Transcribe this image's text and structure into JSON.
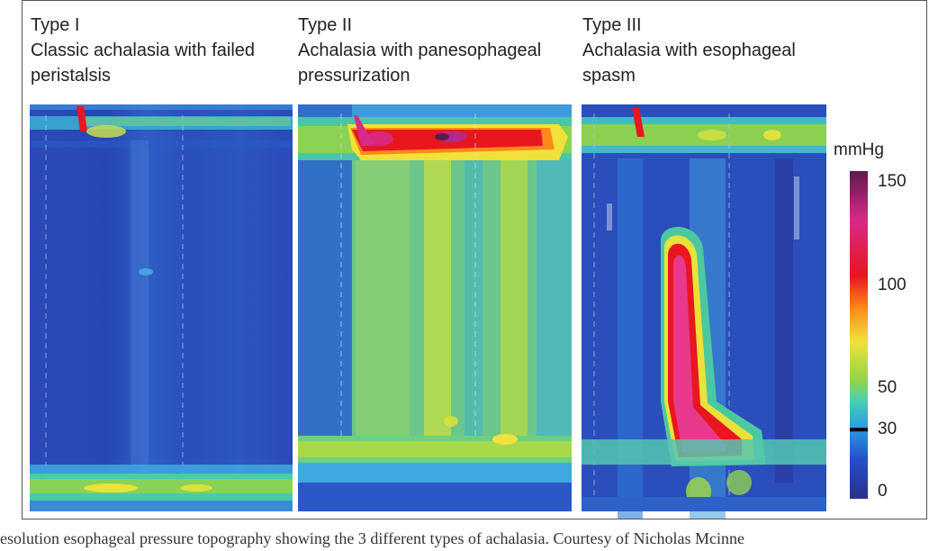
{
  "panels": [
    {
      "type_label": "Type I",
      "title_line1": "Classic achalasia with failed",
      "title_line2": "peristalsis"
    },
    {
      "type_label": "Type II",
      "title_line1": "Achalasia with panesophageal",
      "title_line2": "pressurization"
    },
    {
      "type_label": "Type III",
      "title_line1": "Achalasia with esophageal",
      "title_line2": "spasm"
    }
  ],
  "colorbar": {
    "unit": "mmHg",
    "ticks": [
      "150",
      "100",
      "50",
      "30",
      "0"
    ],
    "tick_values": [
      150,
      100,
      50,
      30,
      0
    ],
    "range": [
      0,
      150
    ],
    "colors": [
      "#2b2f8f",
      "#2450c8",
      "#2aa0e0",
      "#49d0b0",
      "#8fd44a",
      "#f0e23a",
      "#ff8a1a",
      "#e8161e",
      "#d82a8a",
      "#5e1a4e"
    ]
  },
  "caption": "resolution esophageal pressure topography showing the 3 different types of achalasia. Courtesy of Nicholas Mcinne"
}
